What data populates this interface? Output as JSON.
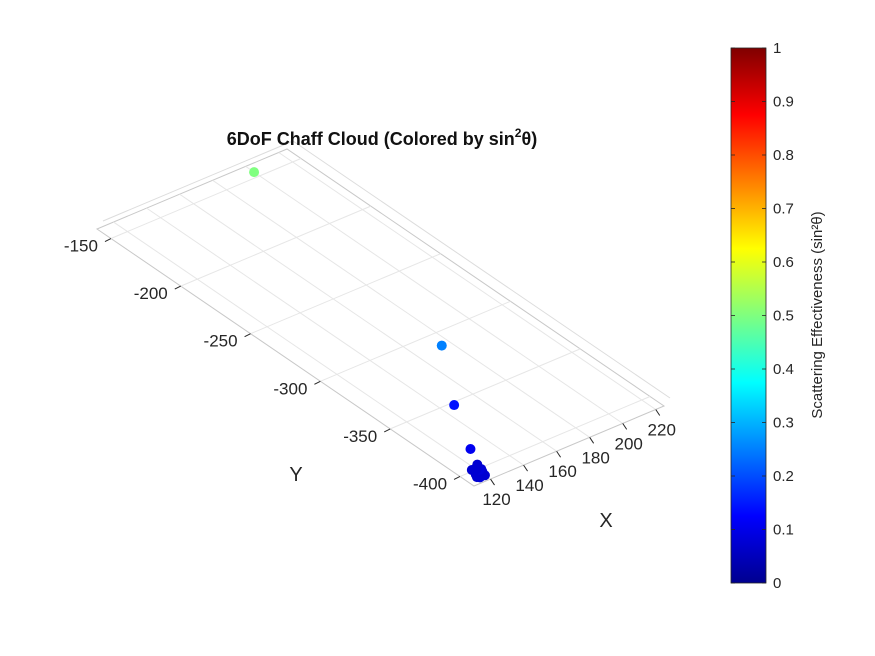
{
  "chart_data": {
    "type": "scatter",
    "title": "6DoF Chaff Cloud (Colored by sin",
    "title_sup": "2",
    "title_end": "θ)",
    "xlabel": "X",
    "ylabel": "Y",
    "x_ticks": [
      "120",
      "140",
      "160",
      "180",
      "200",
      "220"
    ],
    "y_ticks": [
      "-150",
      "-200",
      "-250",
      "-300",
      "-350",
      "-400"
    ],
    "xlim": [
      110,
      225
    ],
    "ylim": [
      -410,
      -140
    ],
    "grid": true,
    "colormap": "jet",
    "colorbar": {
      "label": "Scattering Effectiveness (sin²θ)",
      "limits": [
        0,
        1
      ],
      "ticks": [
        "0",
        "0.1",
        "0.2",
        "0.3",
        "0.4",
        "0.5",
        "0.6",
        "0.7",
        "0.8",
        "0.9",
        "1"
      ]
    },
    "points": [
      {
        "x": 200,
        "y": -146,
        "c": 0.5
      },
      {
        "x": 175,
        "y": -310,
        "c": 0.25
      },
      {
        "x": 147,
        "y": -352,
        "c": 0.14
      },
      {
        "x": 129,
        "y": -385,
        "c": 0.11
      },
      {
        "x": 118,
        "y": -404,
        "c": 0.09
      },
      {
        "x": 119,
        "y": -403,
        "c": 0.08
      },
      {
        "x": 120,
        "y": -402,
        "c": 0.08
      },
      {
        "x": 118,
        "y": -405,
        "c": 0.08
      },
      {
        "x": 117,
        "y": -406,
        "c": 0.09
      },
      {
        "x": 119,
        "y": -405,
        "c": 0.08
      },
      {
        "x": 120,
        "y": -404,
        "c": 0.08
      },
      {
        "x": 121,
        "y": -403,
        "c": 0.09
      },
      {
        "x": 119,
        "y": -400,
        "c": 0.08
      },
      {
        "x": 121,
        "y": -399,
        "c": 0.08
      },
      {
        "x": 122,
        "y": -398,
        "c": 0.09
      },
      {
        "x": 118,
        "y": -402,
        "c": 0.08
      },
      {
        "x": 117,
        "y": -403,
        "c": 0.08
      },
      {
        "x": 116,
        "y": -405,
        "c": 0.08
      },
      {
        "x": 120,
        "y": -406,
        "c": 0.08
      },
      {
        "x": 122,
        "y": -401,
        "c": 0.08
      },
      {
        "x": 121,
        "y": -401,
        "c": 0.09
      },
      {
        "x": 118,
        "y": -399,
        "c": 0.08
      },
      {
        "x": 123,
        "y": -397,
        "c": 0.08
      },
      {
        "x": 120,
        "y": -400,
        "c": 0.08
      }
    ]
  }
}
